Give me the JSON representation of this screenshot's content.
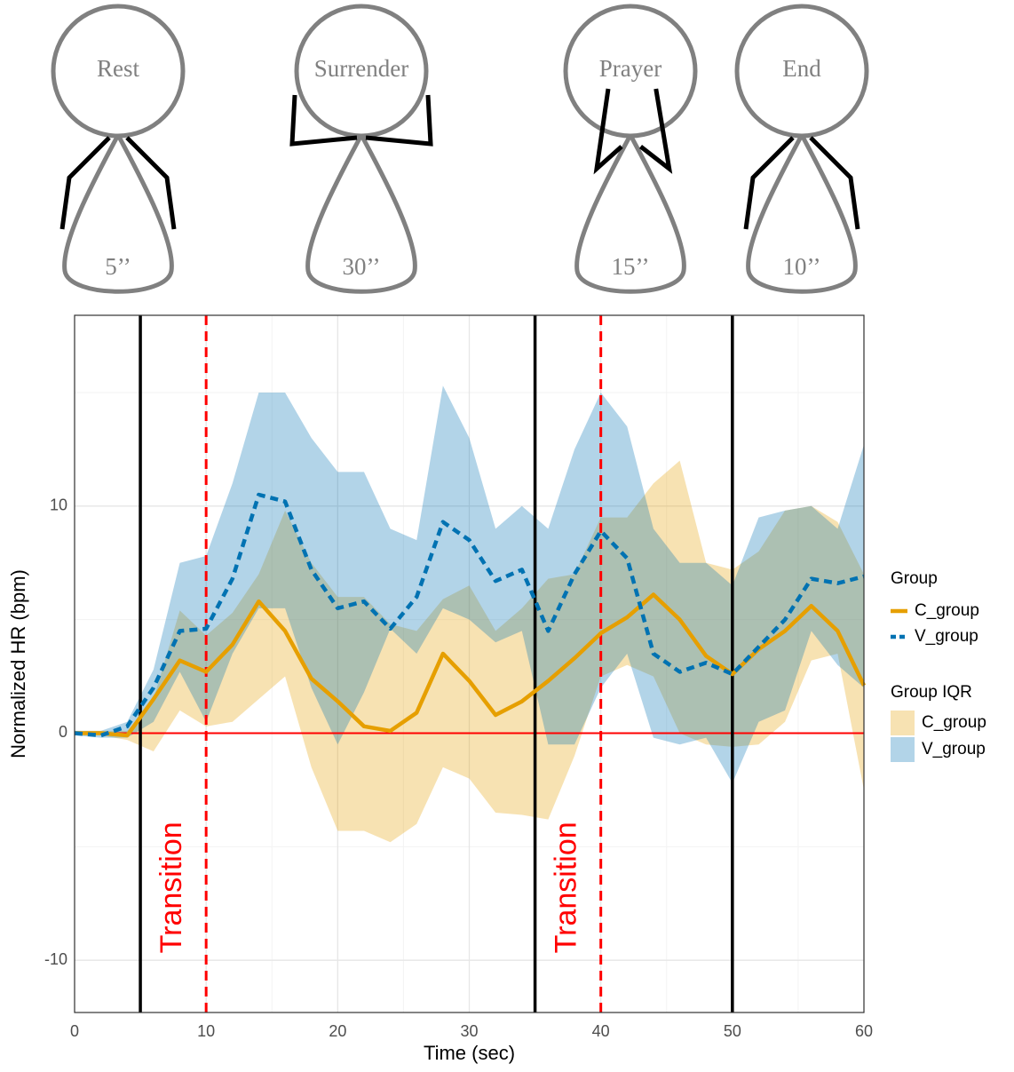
{
  "chart_data": {
    "type": "line",
    "poses": [
      {
        "label": "Rest",
        "duration": "5’’"
      },
      {
        "label": "Surrender",
        "duration": "30’’"
      },
      {
        "label": "Prayer",
        "duration": "15’’"
      },
      {
        "label": "End",
        "duration": "10’’"
      }
    ],
    "x_label": "Time (sec)",
    "y_label": "Normalized HR (bpm)",
    "xlim": [
      0,
      60
    ],
    "ylim": [
      -12.3,
      18.4
    ],
    "xticks": [
      0,
      10,
      20,
      30,
      40,
      50,
      60
    ],
    "yticks": [
      -10,
      0,
      10
    ],
    "grid": true,
    "x": [
      0,
      2,
      4,
      6,
      8,
      10,
      12,
      14,
      16,
      18,
      20,
      22,
      24,
      26,
      28,
      30,
      32,
      34,
      36,
      38,
      40,
      42,
      44,
      46,
      48,
      50,
      52,
      54,
      56,
      58,
      60
    ],
    "series": [
      {
        "name": "C_group",
        "color": "#E69F00",
        "line_style": "solid",
        "values": [
          0,
          0,
          -0.1,
          1.5,
          3.2,
          2.7,
          3.9,
          5.8,
          4.5,
          2.4,
          1.4,
          0.3,
          0.1,
          0.9,
          3.5,
          2.3,
          0.8,
          1.4,
          2.3,
          3.3,
          4.4,
          5.1,
          6.1,
          5,
          3.4,
          2.6,
          3.7,
          4.5,
          5.6,
          4.5,
          2.1
        ],
        "iqr_lower": [
          0,
          -0.1,
          -0.3,
          -0.8,
          1,
          0.3,
          0.5,
          1.5,
          2.5,
          -1.5,
          -4.3,
          -4.3,
          -4.8,
          -4,
          -1.5,
          -2,
          -3.5,
          -3.6,
          -3.8,
          -1,
          2.5,
          3,
          2.5,
          0,
          -0.5,
          -0.6,
          -0.5,
          0.5,
          3.2,
          3.5,
          -2.5
        ],
        "iqr_upper": [
          0.1,
          0.1,
          0.1,
          1.5,
          5.4,
          4.3,
          5.3,
          7,
          9.8,
          7.5,
          6,
          6,
          4.8,
          4.5,
          5.9,
          6.5,
          4.5,
          5.5,
          6.8,
          7,
          9.5,
          9.5,
          11,
          12,
          7.5,
          7.2,
          8,
          9.8,
          10,
          9.3,
          7
        ]
      },
      {
        "name": "V_group",
        "color": "#0072B2",
        "line_style": "dashed",
        "values": [
          0,
          -0.1,
          0.3,
          2,
          4.5,
          4.6,
          6.8,
          10.5,
          10.2,
          7.2,
          5.5,
          5.8,
          4.6,
          6,
          9.3,
          8.5,
          6.7,
          7.2,
          4.5,
          7,
          8.9,
          7.7,
          3.5,
          2.7,
          3.1,
          2.6,
          3.8,
          5,
          6.8,
          6.6,
          6.9
        ],
        "iqr_lower": [
          -0.1,
          -0.2,
          -0.2,
          0.5,
          2.7,
          0.5,
          3.5,
          5.5,
          5.5,
          2,
          -0.5,
          1.8,
          4.6,
          3.5,
          5.5,
          5,
          4,
          4.5,
          -0.5,
          -0.5,
          2,
          3.5,
          -0.2,
          -0.5,
          -0.2,
          -2.2,
          0.5,
          1,
          4.5,
          3,
          2
        ],
        "iqr_upper": [
          0.1,
          0.1,
          0.5,
          2.8,
          7.5,
          7.8,
          11,
          15,
          15,
          13,
          11.5,
          11.5,
          9,
          8.5,
          15.3,
          13,
          9,
          10,
          9,
          12.5,
          15,
          13.5,
          9,
          7.5,
          7.5,
          6.5,
          9.5,
          9.8,
          10,
          9,
          12.7
        ]
      }
    ],
    "legend_title": "Group",
    "band_legend_title": "Group IQR",
    "phase_lines": [
      5,
      35,
      50
    ],
    "transition_lines": [
      10,
      40
    ],
    "reference_line": 0,
    "annotations": [
      {
        "text": "Transition",
        "x": 7.5,
        "y": -6.8
      },
      {
        "text": "Transition",
        "x": 37.5,
        "y": -6.8
      }
    ]
  }
}
